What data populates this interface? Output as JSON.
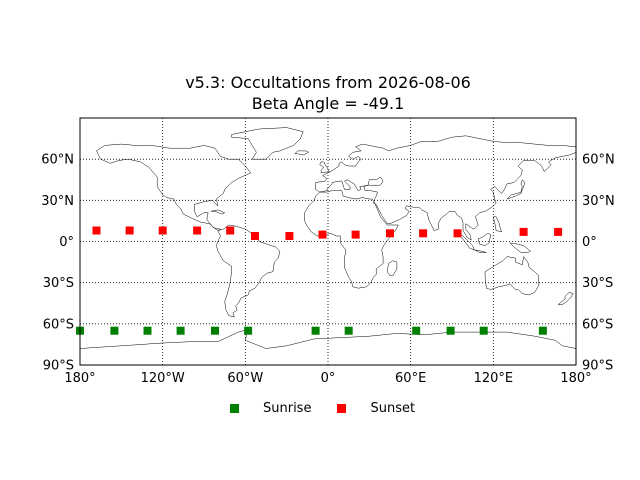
{
  "title": "v5.3: Occultations from 2026-08-06",
  "subtitle": "Beta Angle = -49.1",
  "map": {
    "projection": "cylindrical",
    "lon_range": [
      -180,
      180
    ],
    "lat_range": [
      -90,
      90
    ],
    "grid": true,
    "lat_ticks": [
      {
        "value": 60,
        "label": "60°N"
      },
      {
        "value": 30,
        "label": "30°N"
      },
      {
        "value": 0,
        "label": "0°"
      },
      {
        "value": -30,
        "label": "30°S"
      },
      {
        "value": -60,
        "label": "60°S"
      },
      {
        "value": -90,
        "label": "90°S"
      }
    ],
    "lon_ticks": [
      {
        "value": -180,
        "label": "180°"
      },
      {
        "value": -120,
        "label": "120°W"
      },
      {
        "value": -60,
        "label": "60°W"
      },
      {
        "value": 0,
        "label": "0°"
      },
      {
        "value": 60,
        "label": "60°E"
      },
      {
        "value": 120,
        "label": "120°E"
      },
      {
        "value": 180,
        "label": "180°"
      }
    ]
  },
  "chart_data": {
    "type": "scatter",
    "title": "v5.3: Occultations from 2026-08-06",
    "subtitle": "Beta Angle = -49.1",
    "xlim": [
      -180,
      180
    ],
    "ylim": [
      -90,
      90
    ],
    "grid": true,
    "legend_position": "bottom-center",
    "series": [
      {
        "name": "Sunrise",
        "color": "#008000",
        "marker": "square",
        "points": [
          {
            "lon": -180,
            "lat": -65
          },
          {
            "lon": -155,
            "lat": -65
          },
          {
            "lon": -131,
            "lat": -65
          },
          {
            "lon": -107,
            "lat": -65
          },
          {
            "lon": -82,
            "lat": -65
          },
          {
            "lon": -58,
            "lat": -65
          },
          {
            "lon": -9,
            "lat": -65
          },
          {
            "lon": 15,
            "lat": -65
          },
          {
            "lon": 64,
            "lat": -65
          },
          {
            "lon": 89,
            "lat": -65
          },
          {
            "lon": 113,
            "lat": -65
          },
          {
            "lon": 156,
            "lat": -65
          }
        ]
      },
      {
        "name": "Sunset",
        "color": "#ff0000",
        "marker": "square",
        "points": [
          {
            "lon": -168,
            "lat": 8
          },
          {
            "lon": -144,
            "lat": 8
          },
          {
            "lon": -120,
            "lat": 8
          },
          {
            "lon": -95,
            "lat": 8
          },
          {
            "lon": -71,
            "lat": 8
          },
          {
            "lon": -53,
            "lat": 4
          },
          {
            "lon": -28,
            "lat": 4
          },
          {
            "lon": -4,
            "lat": 5
          },
          {
            "lon": 20,
            "lat": 5
          },
          {
            "lon": 45,
            "lat": 6
          },
          {
            "lon": 69,
            "lat": 6
          },
          {
            "lon": 94,
            "lat": 6
          },
          {
            "lon": 142,
            "lat": 7
          },
          {
            "lon": 167,
            "lat": 7
          }
        ]
      }
    ]
  }
}
